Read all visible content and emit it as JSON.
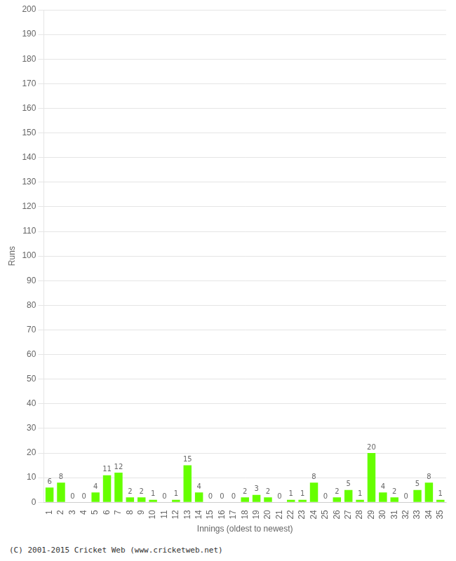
{
  "chart_data": {
    "type": "bar",
    "xlabel": "Innings (oldest to newest)",
    "ylabel": "Runs",
    "categories": [
      "1",
      "2",
      "3",
      "4",
      "5",
      "6",
      "7",
      "8",
      "9",
      "10",
      "11",
      "12",
      "13",
      "14",
      "15",
      "16",
      "17",
      "18",
      "19",
      "20",
      "21",
      "22",
      "23",
      "24",
      "25",
      "26",
      "27",
      "28",
      "29",
      "30",
      "31",
      "32",
      "33",
      "34",
      "35"
    ],
    "values": [
      6,
      8,
      0,
      0,
      4,
      11,
      12,
      2,
      2,
      1,
      0,
      1,
      15,
      4,
      0,
      0,
      0,
      2,
      3,
      2,
      0,
      1,
      1,
      8,
      0,
      2,
      5,
      1,
      20,
      4,
      2,
      0,
      5,
      8,
      1
    ],
    "color": "#66ff00",
    "ylim": [
      0,
      200
    ],
    "yticks": [
      0,
      10,
      20,
      30,
      40,
      50,
      60,
      70,
      80,
      90,
      100,
      110,
      120,
      130,
      140,
      150,
      160,
      170,
      180,
      190,
      200
    ],
    "grid": true,
    "data_labels": true,
    "footer": "(C) 2001-2015 Cricket Web (www.cricketweb.net)"
  }
}
